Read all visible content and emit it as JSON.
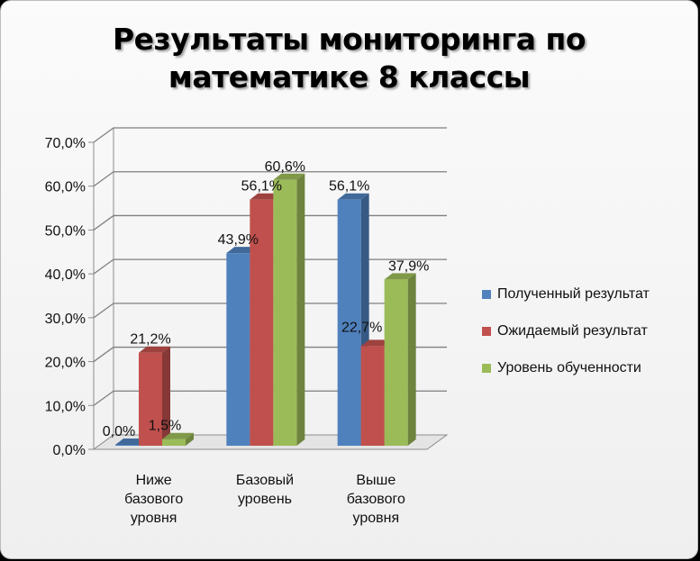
{
  "chart_data": {
    "type": "bar",
    "title": "Результаты мониторинга по\nматематике 8 классы",
    "categories": [
      "Ниже\nбазового\nуровня",
      "Базовый\nуровень",
      "Выше\nбазового\nуровня"
    ],
    "series": [
      {
        "name": "Полученный результат",
        "color": "#4F81BD",
        "values": [
          0.0,
          43.9,
          56.1
        ],
        "labels": [
          "0,0%",
          "43,9%",
          "56,1%"
        ]
      },
      {
        "name": "Ожидаемый результат",
        "color": "#C0504D",
        "values": [
          21.2,
          56.1,
          22.7
        ],
        "labels": [
          "21,2%",
          "56,1%",
          "22,7%"
        ]
      },
      {
        "name": "Уровень обученности",
        "color": "#9BBB59",
        "values": [
          1.5,
          60.6,
          37.9
        ],
        "labels": [
          "1,5%",
          "60,6%",
          "37,9%"
        ]
      }
    ],
    "yticks": [
      "0,0%",
      "10,0%",
      "20,0%",
      "30,0%",
      "40,0%",
      "50,0%",
      "60,0%",
      "70,0%"
    ],
    "ylim": [
      0,
      70
    ],
    "grid": true,
    "legend": "right",
    "style": "3d-clustered-column"
  }
}
